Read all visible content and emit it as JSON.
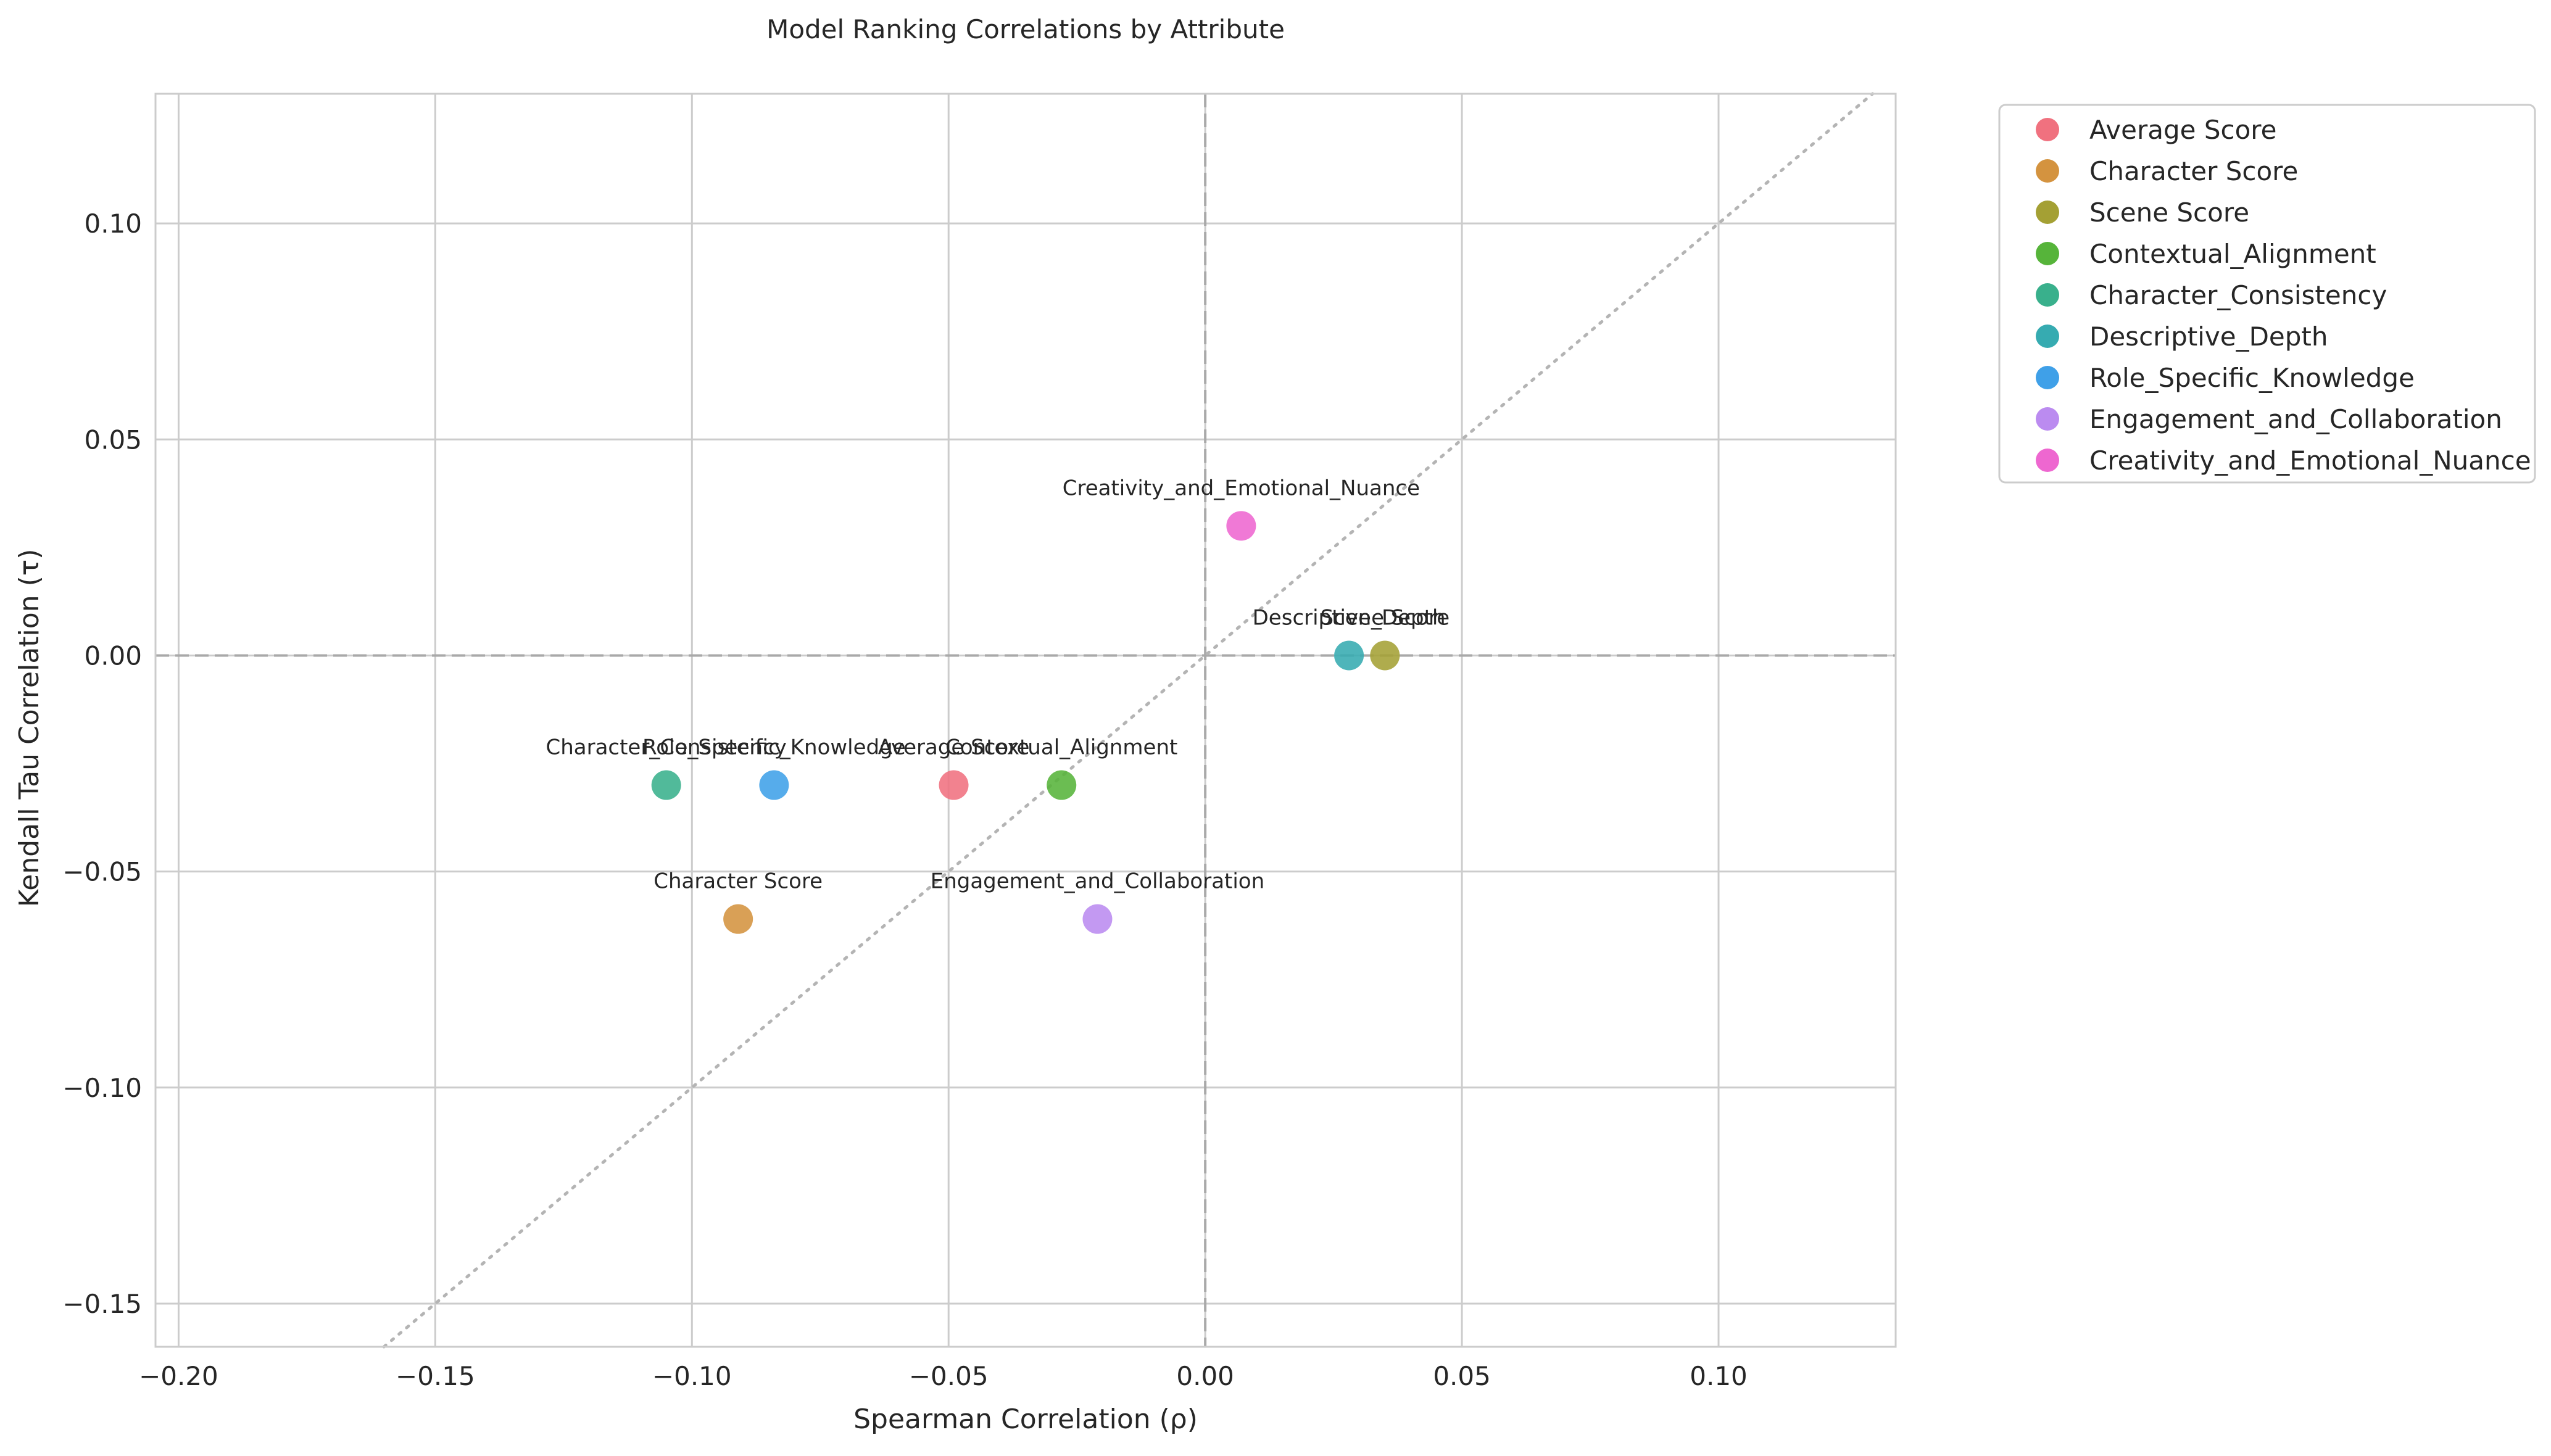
{
  "chart_data": {
    "type": "scatter",
    "title": "Model Ranking Correlations by Attribute",
    "xlabel": "Spearman Correlation (ρ)",
    "ylabel": "Kendall Tau Correlation (τ)",
    "xlim": [
      -0.2045,
      0.1345
    ],
    "ylim": [
      -0.16,
      0.13
    ],
    "xticks": [
      -0.2,
      -0.15,
      -0.1,
      -0.05,
      0.0,
      0.05,
      0.1
    ],
    "yticks": [
      -0.15,
      -0.1,
      -0.05,
      0.0,
      0.05,
      0.1
    ],
    "xtick_labels": [
      "−0.20",
      "−0.15",
      "−0.10",
      "−0.05",
      "0.00",
      "0.05",
      "0.10"
    ],
    "ytick_labels": [
      "−0.15",
      "−0.10",
      "−0.05",
      "0.00",
      "0.05",
      "0.10"
    ],
    "grid": true,
    "reference_lines": [
      "x = 0 (dashed)",
      "y = 0 (dashed)",
      "y = x (dotted)"
    ],
    "legend_position": "outside-top-right",
    "series": [
      {
        "name": "Average Score",
        "color": "#f0717f",
        "x": -0.049,
        "y": -0.03
      },
      {
        "name": "Character Score",
        "color": "#d4933f",
        "x": -0.091,
        "y": -0.061
      },
      {
        "name": "Scene Score",
        "color": "#a4a034",
        "x": 0.035,
        "y": 0.0
      },
      {
        "name": "Contextual_Alignment",
        "color": "#56b43a",
        "x": -0.028,
        "y": -0.03
      },
      {
        "name": "Character_Consistency",
        "color": "#39b08c",
        "x": -0.105,
        "y": -0.03
      },
      {
        "name": "Descriptive_Depth",
        "color": "#36abb1",
        "x": 0.028,
        "y": 0.0
      },
      {
        "name": "Role_Specific_Knowledge",
        "color": "#3fa0e8",
        "x": -0.084,
        "y": -0.03
      },
      {
        "name": "Engagement_and_Collaboration",
        "color": "#bb8bf0",
        "x": -0.021,
        "y": -0.061
      },
      {
        "name": "Creativity_and_Emotional_Nuance",
        "color": "#ee67d0",
        "x": 0.007,
        "y": 0.03
      }
    ]
  }
}
